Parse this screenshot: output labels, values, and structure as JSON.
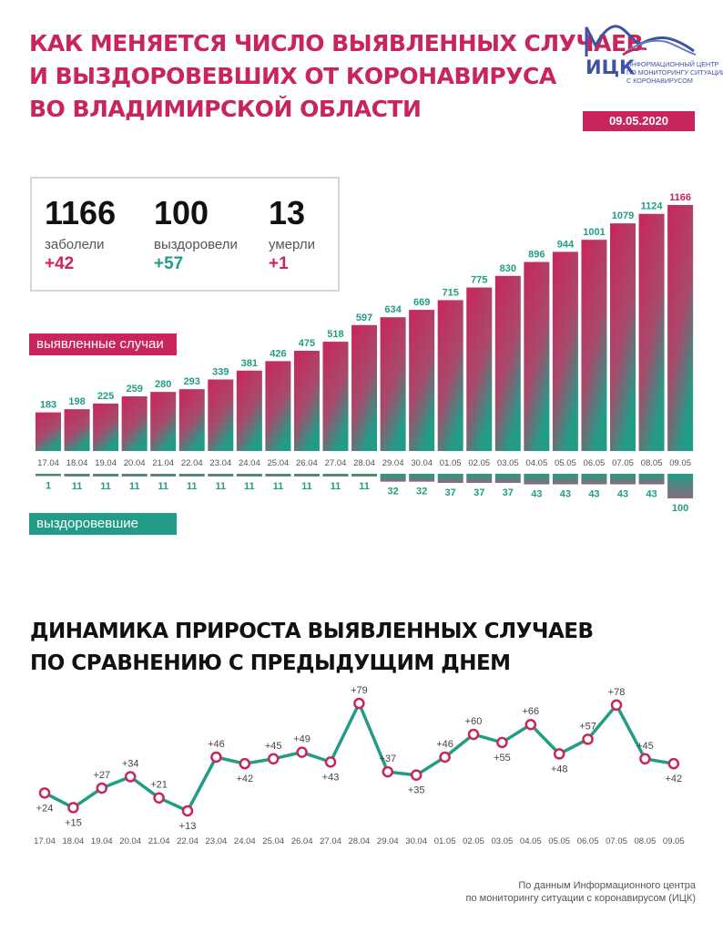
{
  "title_lines": [
    "КАК МЕНЯЕТСЯ ЧИСЛО ВЫЯВЛЕННЫХ СЛУЧАЕВ",
    "И ВЫЗДОРОВЕВШИХ ОТ КОРОНАВИРУСА",
    "ВО ВЛАДИМИРСКОЙ ОБЛАСТИ"
  ],
  "logo": {
    "name": "ИЦК",
    "description_lines": [
      "ИНФОРМАЦИОННЫЙ ЦЕНТР",
      "ПО МОНИТОРИНГУ СИТУАЦИИ",
      "С КОРОНАВИРУСОМ"
    ],
    "date": "09.05.2020",
    "icon": "wave-peaks-icon"
  },
  "stats": [
    {
      "value": "1166",
      "label": "заболели",
      "delta": "+42",
      "color": "#c8265a"
    },
    {
      "value": "100",
      "label": "выздоровели",
      "delta": "+57",
      "color": "#229c87"
    },
    {
      "value": "13",
      "label": "умерли",
      "delta": "+1",
      "color": "#c8265a"
    }
  ],
  "tags": {
    "cases": "выявленные случаи",
    "recovered": "выздоровевшие"
  },
  "subtitle_lines": [
    "ДИНАМИКА ПРИРОСТА ВЫЯВЛЕННЫХ СЛУЧАЕВ",
    "ПО СРАВНЕНИЮ С ПРЕДЫДУЩИМ ДНЕМ"
  ],
  "source_lines": [
    "По данным Информационного центра",
    "по мониторингу ситуации с коронавирусом (ИЦК)"
  ],
  "colors": {
    "accent": "#c8265a",
    "green": "#229c87",
    "blue": "#3f53a4"
  },
  "chart_data": [
    {
      "type": "bar",
      "categories": [
        "17.04",
        "18.04",
        "19.04",
        "20.04",
        "21.04",
        "22.04",
        "23.04",
        "24.04",
        "25.04",
        "26.04",
        "27.04",
        "28.04",
        "29.04",
        "30.04",
        "01.05",
        "02.05",
        "03.05",
        "04.05",
        "05.05",
        "06.05",
        "07.05",
        "08.05",
        "09.05"
      ],
      "series": [
        {
          "name": "выявленные случаи",
          "values": [
            183,
            198,
            225,
            259,
            280,
            293,
            339,
            381,
            426,
            475,
            518,
            597,
            634,
            669,
            715,
            775,
            830,
            896,
            944,
            1001,
            1079,
            1124,
            1166
          ]
        },
        {
          "name": "выздоровевшие",
          "values": [
            1,
            11,
            11,
            11,
            11,
            11,
            11,
            11,
            11,
            11,
            11,
            11,
            32,
            32,
            37,
            37,
            37,
            43,
            43,
            43,
            43,
            43,
            100
          ]
        }
      ]
    },
    {
      "type": "line",
      "title": "ДИНАМИКА ПРИРОСТА ВЫЯВЛЕННЫХ СЛУЧАЕВ ПО СРАВНЕНИЮ С ПРЕДЫДУЩИМ ДНЕМ",
      "x": [
        "17.04",
        "18.04",
        "19.04",
        "20.04",
        "21.04",
        "22.04",
        "23.04",
        "24.04",
        "25.04",
        "26.04",
        "27.04",
        "28.04",
        "29.04",
        "30.04",
        "01.05",
        "02.05",
        "03.05",
        "04.05",
        "05.05",
        "06.05",
        "07.05",
        "08.05",
        "09.05"
      ],
      "values": [
        24,
        15,
        27,
        34,
        21,
        13,
        46,
        42,
        45,
        49,
        43,
        79,
        37,
        35,
        46,
        60,
        55,
        66,
        48,
        57,
        78,
        45,
        42
      ],
      "labels": [
        "+24",
        "+15",
        "+27",
        "+34",
        "+21",
        "+13",
        "+46",
        "+42",
        "+45",
        "+49",
        "+43",
        "+79",
        "+37",
        "+35",
        "+46",
        "+60",
        "+55",
        "+66",
        "+48",
        "+57",
        "+78",
        "+45",
        "+42"
      ]
    }
  ]
}
